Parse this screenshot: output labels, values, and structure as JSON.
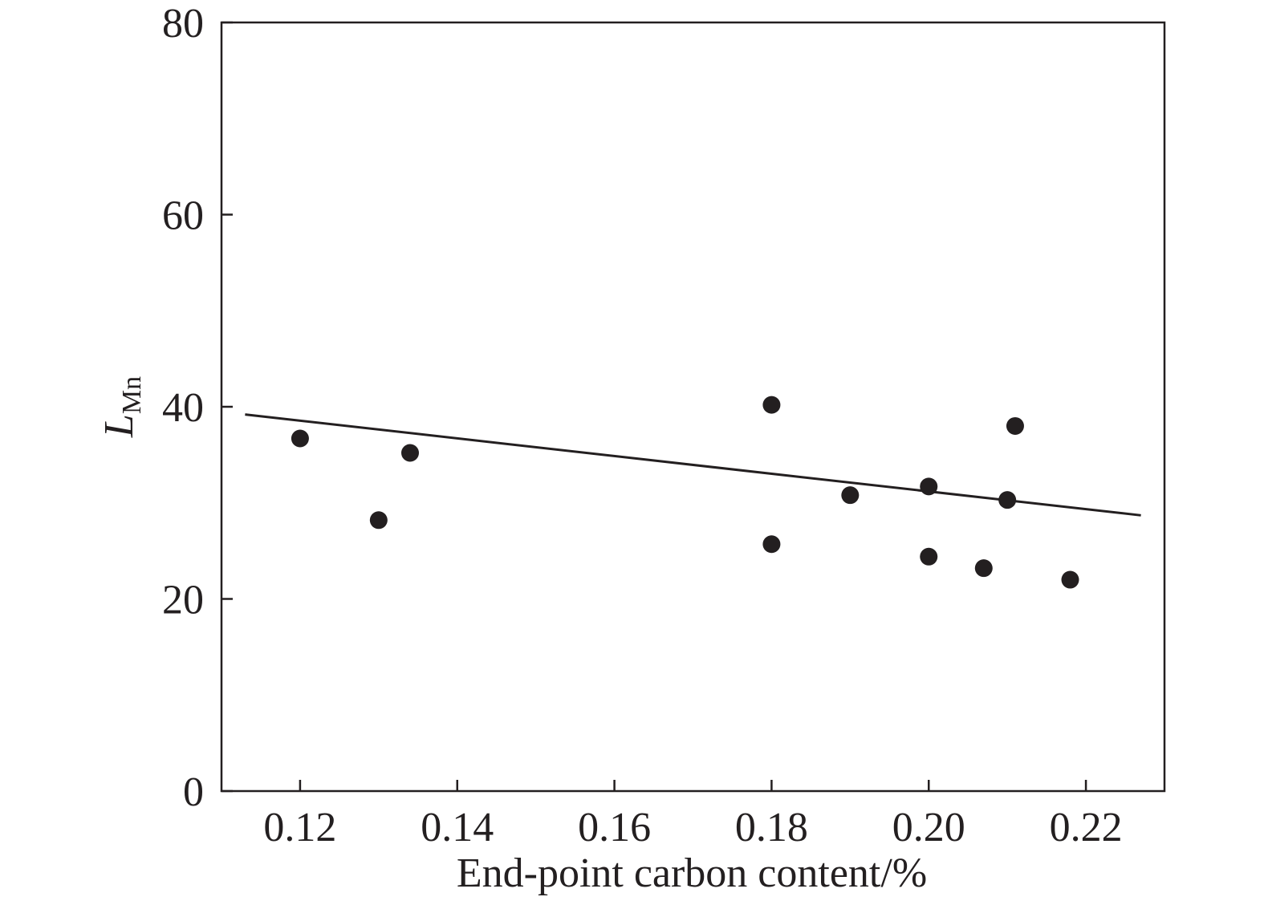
{
  "chart_data": {
    "type": "scatter",
    "xlabel": "End-point carbon content/%",
    "ylabel": {
      "main": "L",
      "subscript": "Mn"
    },
    "xlim": [
      0.11,
      0.23
    ],
    "ylim": [
      0,
      80
    ],
    "x_ticks": [
      "0.12",
      "0.14",
      "0.16",
      "0.18",
      "0.20",
      "0.22"
    ],
    "y_ticks": [
      "0",
      "20",
      "40",
      "60",
      "80"
    ],
    "grid": false,
    "legend": "none",
    "points": [
      {
        "x": 0.12,
        "y": 36.7
      },
      {
        "x": 0.13,
        "y": 28.2
      },
      {
        "x": 0.134,
        "y": 35.2
      },
      {
        "x": 0.18,
        "y": 40.2
      },
      {
        "x": 0.18,
        "y": 25.7
      },
      {
        "x": 0.19,
        "y": 30.8
      },
      {
        "x": 0.2,
        "y": 31.7
      },
      {
        "x": 0.2,
        "y": 24.4
      },
      {
        "x": 0.207,
        "y": 23.2
      },
      {
        "x": 0.21,
        "y": 30.3
      },
      {
        "x": 0.211,
        "y": 38.0
      },
      {
        "x": 0.218,
        "y": 22.0
      }
    ],
    "trendline": {
      "x": [
        0.113,
        0.227
      ],
      "y": [
        39.2,
        28.7
      ]
    },
    "colors": {
      "ink": "#231f20",
      "background": "#ffffff"
    }
  }
}
